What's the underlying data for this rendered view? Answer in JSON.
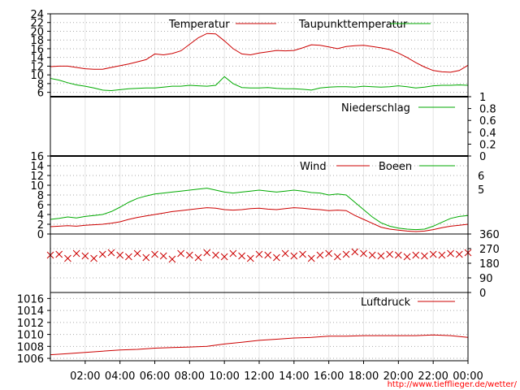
{
  "credit": "http://www.tiefflieger.de/wetter/",
  "x_axis": {
    "ticks": [
      "02:00",
      "04:00",
      "06:00",
      "08:00",
      "10:00",
      "12:00",
      "14:00",
      "16:00",
      "18:00",
      "20:00",
      "22:00",
      "00:00"
    ],
    "range_hours": [
      0,
      24
    ]
  },
  "colors": {
    "red": "#cc0000",
    "green": "#00aa00",
    "grid": "#aaaaaa",
    "cross": "#cc0000"
  },
  "chart_data": [
    {
      "id": "temperature",
      "type": "line",
      "ylim": [
        5,
        24
      ],
      "yticks": [
        "6",
        "8",
        "10",
        "12",
        "14",
        "16",
        "18",
        "20",
        "22",
        "24"
      ],
      "yaxis_side": "left",
      "grid": true,
      "legend_placement": "top",
      "series": [
        {
          "name": "Temperatur",
          "color": "#cc0000",
          "x": [
            0,
            0.5,
            1,
            1.5,
            2,
            2.5,
            3,
            3.5,
            4,
            4.5,
            5,
            5.5,
            6,
            6.5,
            7,
            7.5,
            8,
            8.5,
            9,
            9.5,
            10,
            10.5,
            11,
            11.5,
            12,
            12.5,
            13,
            13.5,
            14,
            14.5,
            15,
            15.5,
            16,
            16.5,
            17,
            17.5,
            18,
            18.5,
            19,
            19.5,
            20,
            20.5,
            21,
            21.5,
            22,
            22.5,
            23,
            23.5,
            24
          ],
          "y": [
            11.9,
            12.0,
            12.0,
            11.7,
            11.4,
            11.3,
            11.3,
            11.7,
            12.1,
            12.5,
            13.0,
            13.5,
            14.8,
            14.6,
            14.9,
            15.5,
            17.0,
            18.5,
            19.5,
            19.4,
            17.8,
            16.0,
            14.8,
            14.6,
            15.0,
            15.3,
            15.6,
            15.5,
            15.6,
            16.2,
            16.9,
            16.8,
            16.4,
            16.0,
            16.5,
            16.7,
            16.8,
            16.5,
            16.2,
            15.8,
            15.0,
            14.0,
            12.8,
            11.8,
            11.0,
            10.7,
            10.6,
            11.0,
            12.2
          ]
        },
        {
          "name": "Taupunkttemperatur",
          "color": "#00aa00",
          "x": [
            0,
            0.5,
            1,
            1.5,
            2,
            2.5,
            3,
            3.5,
            4,
            4.5,
            5,
            5.5,
            6,
            6.5,
            7,
            7.5,
            8,
            8.5,
            9,
            9.5,
            10,
            10.5,
            11,
            11.5,
            12,
            12.5,
            13,
            13.5,
            14,
            14.5,
            15,
            15.5,
            16,
            16.5,
            17,
            17.5,
            18,
            18.5,
            19,
            19.5,
            20,
            20.5,
            21,
            21.5,
            22,
            22.5,
            23,
            23.5,
            24
          ],
          "y": [
            9.2,
            8.8,
            8.2,
            7.7,
            7.4,
            7.0,
            6.5,
            6.4,
            6.6,
            6.8,
            6.9,
            7.0,
            7.0,
            7.2,
            7.4,
            7.4,
            7.6,
            7.5,
            7.4,
            7.6,
            9.6,
            8.0,
            7.1,
            7.0,
            7.0,
            7.1,
            6.9,
            6.8,
            6.8,
            6.7,
            6.5,
            7.0,
            7.2,
            7.3,
            7.3,
            7.2,
            7.4,
            7.3,
            7.2,
            7.3,
            7.5,
            7.3,
            7.0,
            7.2,
            7.5,
            7.6,
            7.6,
            7.7,
            7.6
          ]
        }
      ]
    },
    {
      "id": "precipitation",
      "type": "line",
      "ylim": [
        0,
        1
      ],
      "yticks": [
        "0",
        "0.2",
        "0.4",
        "0.6",
        "0.8",
        "1"
      ],
      "yaxis_side": "right",
      "grid": false,
      "legend_placement": "top-right",
      "series": [
        {
          "name": "Niederschlag",
          "color": "#00aa00",
          "x": [
            0,
            24
          ],
          "y": [
            0,
            0
          ]
        }
      ]
    },
    {
      "id": "wind",
      "type": "line",
      "ylim": [
        0,
        16
      ],
      "yticks": [
        "0",
        "2",
        "4",
        "6",
        "8",
        "10",
        "12",
        "14",
        "16"
      ],
      "right_ticks": [
        "5",
        "6"
      ],
      "yaxis_side": "left",
      "grid": true,
      "legend_placement": "top-right",
      "series": [
        {
          "name": "Wind",
          "color": "#cc0000",
          "x": [
            0,
            0.5,
            1,
            1.5,
            2,
            2.5,
            3,
            3.5,
            4,
            4.5,
            5,
            5.5,
            6,
            6.5,
            7,
            7.5,
            8,
            8.5,
            9,
            9.5,
            10,
            10.5,
            11,
            11.5,
            12,
            12.5,
            13,
            13.5,
            14,
            14.5,
            15,
            15.5,
            16,
            16.5,
            17,
            17.5,
            18,
            18.5,
            19,
            19.5,
            20,
            20.5,
            21,
            21.5,
            22,
            22.5,
            23,
            23.5,
            24
          ],
          "y": [
            1.5,
            1.6,
            1.7,
            1.6,
            1.8,
            1.9,
            2.0,
            2.2,
            2.5,
            3.0,
            3.4,
            3.7,
            4.0,
            4.3,
            4.6,
            4.8,
            5.0,
            5.2,
            5.4,
            5.3,
            5.0,
            4.9,
            5.0,
            5.2,
            5.3,
            5.1,
            5.0,
            5.2,
            5.4,
            5.3,
            5.1,
            5.0,
            4.8,
            4.9,
            4.8,
            3.8,
            3.0,
            2.2,
            1.4,
            1.0,
            0.8,
            0.6,
            0.5,
            0.6,
            0.9,
            1.3,
            1.6,
            1.8,
            2.0
          ]
        },
        {
          "name": "Boeen",
          "color": "#00aa00",
          "x": [
            0,
            0.5,
            1,
            1.5,
            2,
            2.5,
            3,
            3.5,
            4,
            4.5,
            5,
            5.5,
            6,
            6.5,
            7,
            7.5,
            8,
            8.5,
            9,
            9.5,
            10,
            10.5,
            11,
            11.5,
            12,
            12.5,
            13,
            13.5,
            14,
            14.5,
            15,
            15.5,
            16,
            16.5,
            17,
            17.5,
            18,
            18.5,
            19,
            19.5,
            20,
            20.5,
            21,
            21.5,
            22,
            22.5,
            23,
            23.5,
            24
          ],
          "y": [
            3.0,
            3.2,
            3.5,
            3.3,
            3.6,
            3.8,
            4.0,
            4.6,
            5.5,
            6.5,
            7.3,
            7.8,
            8.2,
            8.4,
            8.6,
            8.8,
            9.0,
            9.2,
            9.4,
            9.0,
            8.6,
            8.4,
            8.6,
            8.8,
            9.0,
            8.8,
            8.6,
            8.8,
            9.0,
            8.8,
            8.5,
            8.4,
            8.0,
            8.2,
            8.0,
            6.5,
            5.0,
            3.5,
            2.3,
            1.6,
            1.2,
            1.0,
            0.9,
            1.0,
            1.6,
            2.4,
            3.2,
            3.6,
            3.8
          ]
        }
      ]
    },
    {
      "id": "wind_direction",
      "type": "scatter",
      "ylim": [
        0,
        360
      ],
      "yticks": [
        "0",
        "90",
        "180",
        "270",
        "360"
      ],
      "yaxis_side": "right",
      "grid": true,
      "marker": "x",
      "series": [
        {
          "name": "",
          "color": "#cc0000",
          "x": [
            0,
            0.5,
            1,
            1.5,
            2,
            2.5,
            3,
            3.5,
            4,
            4.5,
            5,
            5.5,
            6,
            6.5,
            7,
            7.5,
            8,
            8.5,
            9,
            9.5,
            10,
            10.5,
            11,
            11.5,
            12,
            12.5,
            13,
            13.5,
            14,
            14.5,
            15,
            15.5,
            16,
            16.5,
            17,
            17.5,
            18,
            18.5,
            19,
            19.5,
            20,
            20.5,
            21,
            21.5,
            22,
            22.5,
            23,
            23.5,
            24
          ],
          "y": [
            230,
            235,
            210,
            240,
            225,
            210,
            235,
            245,
            230,
            220,
            240,
            215,
            235,
            225,
            205,
            240,
            230,
            215,
            245,
            230,
            220,
            240,
            225,
            210,
            235,
            230,
            215,
            240,
            225,
            235,
            210,
            230,
            240,
            220,
            235,
            250,
            240,
            230,
            225,
            235,
            230,
            220,
            230,
            225,
            235,
            230,
            240,
            235,
            245
          ]
        }
      ]
    },
    {
      "id": "pressure",
      "type": "line",
      "ylim": [
        1005.6,
        1017
      ],
      "yticks": [
        "1006",
        "1008",
        "1010",
        "1012",
        "1014",
        "1016"
      ],
      "yaxis_side": "left",
      "grid": true,
      "legend_placement": "top-right",
      "series": [
        {
          "name": "Luftdruck",
          "color": "#cc0000",
          "x": [
            0,
            1,
            2,
            3,
            4,
            5,
            6,
            7,
            8,
            9,
            10,
            11,
            12,
            13,
            14,
            15,
            16,
            17,
            18,
            19,
            20,
            21,
            22,
            23,
            24
          ],
          "y": [
            1006.6,
            1006.8,
            1007.0,
            1007.2,
            1007.4,
            1007.5,
            1007.7,
            1007.8,
            1007.9,
            1008.0,
            1008.4,
            1008.7,
            1009.0,
            1009.2,
            1009.4,
            1009.5,
            1009.7,
            1009.7,
            1009.8,
            1009.8,
            1009.8,
            1009.8,
            1009.9,
            1009.8,
            1009.5
          ]
        }
      ]
    }
  ]
}
